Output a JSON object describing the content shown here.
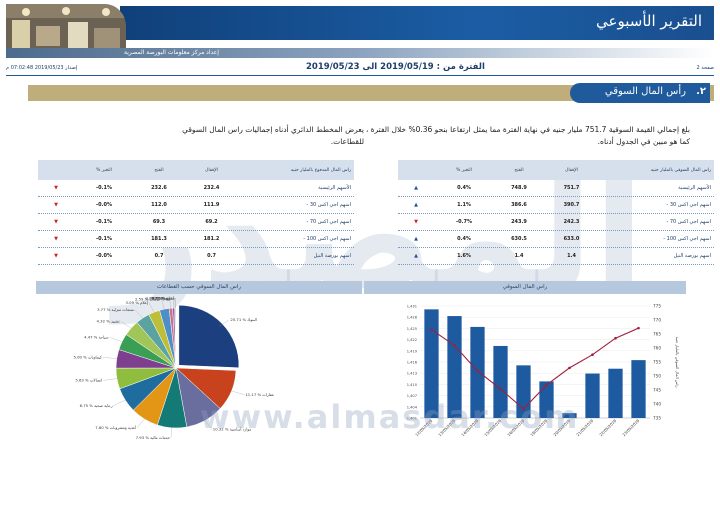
{
  "header": {
    "title": "التقرير الأسبوعي",
    "org": "إعداد مركز معلومات البورصة المصرية",
    "issue": "إصدار 2019/05/23 07:02:48 م",
    "period": "الفترة من : 2019/05/19 الى 2019/05/23",
    "page": "صفحة 2"
  },
  "section": {
    "number": ".٢",
    "title": "رأس المال السوقي"
  },
  "paragraphs": {
    "right": "بلغ إجمالي القيمة السوقية 751.7 مليار جنيه في نهاية الفترة مما يمثل ارتفاعا بنحو 0.36% خلال الفترة ، كما هو مبين في الجدول أدناه.",
    "left": "يعرض المخطط الدائري أدناه إجماليات راس المال السوقي للقطاعات."
  },
  "table_right": {
    "headers": {
      "name": "راس المال السوقي بالمليار جنيه",
      "close": "الإقفال",
      "open": "الفتح",
      "chg": "% التغير"
    },
    "rows": [
      {
        "name": "الأسهم الرئيسية",
        "close": "751.7",
        "open": "748.9",
        "chg": "0.4%",
        "dir": "up"
      },
      {
        "name": "- اسهم اجي اكس 30",
        "close": "390.7",
        "open": "386.6",
        "chg": "1.1%",
        "dir": "up"
      },
      {
        "name": "- اسهم اجي اكس 70",
        "close": "242.3",
        "open": "243.9",
        "chg": "-0.7%",
        "dir": "down"
      },
      {
        "name": "- اسهم اجي اكس 100",
        "close": "633.0",
        "open": "630.5",
        "chg": "0.4%",
        "dir": "up"
      },
      {
        "name": "اسهم بورصة النيل",
        "close": "1.4",
        "open": "1.4",
        "chg": "1.6%",
        "dir": "up"
      }
    ]
  },
  "table_left": {
    "headers": {
      "name": "راس المال المدفوع بالمليار جنيه",
      "close": "الإقفال",
      "open": "الفتح",
      "chg": "% التغير"
    },
    "rows": [
      {
        "name": "الأسهم الرئيسية",
        "close": "232.4",
        "open": "232.6",
        "chg": "-0.1%",
        "dir": "down"
      },
      {
        "name": "- اسهم اجي اكس 30",
        "close": "111.9",
        "open": "112.0",
        "chg": "-0.0%",
        "dir": "down"
      },
      {
        "name": "- اسهم اجي اكس 70",
        "close": "69.2",
        "open": "69.3",
        "chg": "-0.1%",
        "dir": "down"
      },
      {
        "name": "- اسهم اجي اكس 100",
        "close": "181.2",
        "open": "181.3",
        "chg": "-0.1%",
        "dir": "down"
      },
      {
        "name": "اسهم بورصة النيل",
        "close": "0.7",
        "open": "0.7",
        "chg": "-0.0%",
        "dir": "down"
      }
    ]
  },
  "chart_titles": {
    "left": "راس المال السوقي حسب القطاعات",
    "right": "راس المال السوقي"
  },
  "watermark": {
    "text": "المصدر",
    "url": "www.almasdar.com"
  },
  "chart_data": [
    {
      "type": "bar",
      "title": "راس المال السوقي",
      "ylabel_left": "راس المال السوقي بالمليار جنيه",
      "categories": [
        "23/05/2019",
        "22/05/2019",
        "21/05/2019",
        "20/05/2019",
        "19/05/2019",
        "16/05/2019",
        "15/05/2019",
        "14/05/2019",
        "13/05/2019",
        "12/05/2019"
      ],
      "left_ticks": [
        "1,401",
        "1,404",
        "1,407",
        "1,410",
        "1,413",
        "1,416",
        "1,419",
        "1,422",
        "1,425",
        "1,428",
        "1,431"
      ],
      "right_ticks": [
        "735",
        "740",
        "745",
        "750",
        "755",
        "760",
        "765",
        "770",
        "775"
      ],
      "series": [
        {
          "name": "bars",
          "axis": "left",
          "values": [
            1416.5,
            1414.2,
            1412.9,
            1402.3,
            1410.8,
            1415.1,
            1420.3,
            1425.4,
            1428.3,
            1430.1
          ]
        },
        {
          "name": "line",
          "axis": "right",
          "values": [
            767.1,
            763.5,
            757.6,
            752.9,
            746.8,
            738.2,
            745.4,
            751.8,
            760.9,
            766.6
          ]
        }
      ],
      "bar_color": "#1e5aa0",
      "line_color": "#a0203c"
    },
    {
      "type": "pie",
      "title": "راس المال السوقي حسب القطاعات",
      "slices": [
        {
          "label": "البنوك",
          "value": 25.71,
          "color": "#1c3f7f"
        },
        {
          "label": "عقارات",
          "value": 11.17,
          "color": "#c8431d"
        },
        {
          "label": "موارد أساسية",
          "value": 10.32,
          "color": "#6a6e9e"
        },
        {
          "label": "خدمات مالية",
          "value": 7.93,
          "color": "#137a76"
        },
        {
          "label": "أغذية ومشروبات",
          "value": 7.6,
          "color": "#e39516"
        },
        {
          "label": "رعاية صحية",
          "value": 6.75,
          "color": "#1f6d9e"
        },
        {
          "label": "اتصالات",
          "value": 5.63,
          "color": "#8fbe3f"
        },
        {
          "label": "كيماويات",
          "value": 5.0,
          "color": "#7d3f8e"
        },
        {
          "label": "سياحة",
          "value": 4.47,
          "color": "#3a9e55"
        },
        {
          "label": "تشييد",
          "value": 4.32,
          "color": "#a2c55a"
        },
        {
          "label": "منتجات منزلية",
          "value": 3.77,
          "color": "#5ba3a1"
        },
        {
          "label": "إعلام",
          "value": 3.09,
          "color": "#bdbf3a"
        },
        {
          "label": "خدمات",
          "value": 2.59,
          "color": "#4e8fc9"
        },
        {
          "label": "تجزئة",
          "value": 0.93,
          "color": "#d06f8a"
        },
        {
          "label": "غاز",
          "value": 0.55,
          "color": "#8b5aa5"
        },
        {
          "label": "أخرى",
          "value": 0.22,
          "color": "#6bb3d6"
        },
        {
          "label": "متنوع",
          "value": 0.13,
          "color": "#e04b3a"
        }
      ],
      "label_values": [
        "25.71 %",
        "11.17 %",
        "10.32 %",
        "7.93 %",
        "7.60 %",
        "6.75 %",
        "5.63 %",
        "5.00 %",
        "4.47 %",
        "4.32 %",
        "3.77 %",
        "3.09 %",
        "2.59 %",
        "0.93 %",
        "0.55 %",
        "0.22 %",
        "0.13 %"
      ]
    }
  ]
}
